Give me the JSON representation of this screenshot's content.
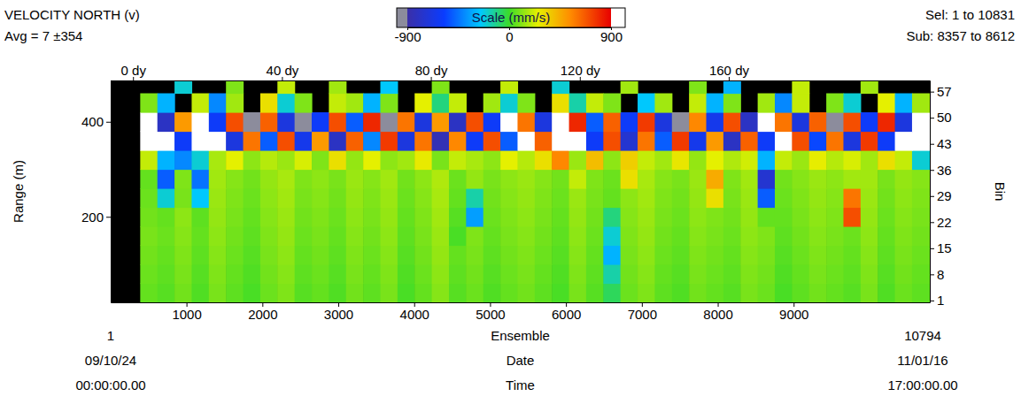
{
  "chart_data": {
    "type": "heatmap",
    "title": "VELOCITY NORTH (v)",
    "subtitle": "Avg = 7 ±354",
    "annotations": [
      "Sel: 1 to 10831",
      "Sub: 8357 to 8612"
    ],
    "footer_rows": [
      {
        "label": "Ensemble",
        "start": 1,
        "end": 10794
      },
      {
        "label": "Date",
        "start": "09/10/24",
        "end": "11/01/16"
      },
      {
        "label": "Time",
        "start": "00:00:00.00",
        "end": "17:00:00.00"
      }
    ],
    "xlim": [
      1,
      10794
    ],
    "xticks": [
      1000,
      2000,
      3000,
      4000,
      5000,
      6000,
      7000,
      8000,
      9000
    ],
    "x2lim": [
      -6,
      214
    ],
    "x2ticks": [
      {
        "value": 0,
        "label": "0 dy"
      },
      {
        "value": 40,
        "label": "40 dy"
      },
      {
        "value": 80,
        "label": "80 dy"
      },
      {
        "value": 120,
        "label": "120 dy"
      },
      {
        "value": 160,
        "label": "160 dy"
      }
    ],
    "y_label": "Range (m)",
    "ylim": [
      20,
      487
    ],
    "yticks": [
      200,
      400
    ],
    "y2_label": "Bin",
    "y2lim": [
      0.5,
      60
    ],
    "y2ticks": [
      1,
      8,
      15,
      22,
      29,
      36,
      43,
      50,
      57
    ],
    "colorbar": {
      "label": "Scale (mm/s)",
      "lim": [
        -900,
        900
      ],
      "ticks": [
        -900,
        0,
        900
      ]
    },
    "x_edges": [
      1,
      390,
      616,
      842,
      1068,
      1294,
      1520,
      1746,
      1972,
      2198,
      2424,
      2650,
      2876,
      3102,
      3328,
      3554,
      3780,
      4006,
      4232,
      4458,
      4684,
      4910,
      5136,
      5362,
      5588,
      5814,
      6040,
      6266,
      6492,
      6718,
      6944,
      7170,
      7396,
      7622,
      7848,
      8074,
      8300,
      8526,
      8752,
      8978,
      9204,
      9430,
      9656,
      9882,
      10108,
      10334,
      10560,
      10794
    ],
    "y_edges": [
      20,
      60,
      100,
      140,
      180,
      220,
      260,
      300,
      340,
      380,
      420,
      460,
      500
    ],
    "values": [
      [
        null,
        60,
        40,
        80,
        30,
        90,
        50,
        20,
        70,
        100,
        40,
        60,
        30,
        80,
        50,
        90,
        20,
        60,
        110,
        40,
        70,
        30,
        60,
        80,
        50,
        20,
        90,
        40,
        -60,
        70,
        100,
        50,
        30,
        80,
        60,
        40,
        90,
        70,
        20,
        50,
        80,
        60,
        40,
        90,
        30,
        70,
        50
      ],
      [
        null,
        70,
        50,
        90,
        40,
        100,
        60,
        30,
        80,
        110,
        50,
        70,
        40,
        90,
        60,
        100,
        30,
        70,
        120,
        50,
        80,
        40,
        70,
        90,
        60,
        30,
        100,
        50,
        -150,
        80,
        110,
        60,
        40,
        90,
        70,
        50,
        100,
        80,
        30,
        60,
        90,
        70,
        50,
        100,
        40,
        80,
        60
      ],
      [
        null,
        80,
        60,
        100,
        50,
        110,
        70,
        40,
        90,
        120,
        60,
        80,
        50,
        100,
        70,
        110,
        40,
        80,
        130,
        60,
        90,
        50,
        80,
        100,
        70,
        40,
        110,
        60,
        -300,
        90,
        120,
        70,
        50,
        100,
        80,
        60,
        110,
        90,
        40,
        70,
        100,
        80,
        60,
        110,
        50,
        90,
        70
      ],
      [
        null,
        90,
        70,
        110,
        60,
        120,
        80,
        50,
        100,
        130,
        70,
        90,
        60,
        110,
        80,
        120,
        50,
        90,
        140,
        20,
        100,
        60,
        90,
        110,
        80,
        50,
        120,
        70,
        -200,
        100,
        130,
        80,
        60,
        110,
        90,
        70,
        120,
        100,
        50,
        80,
        110,
        90,
        70,
        120,
        60,
        100,
        80
      ],
      [
        null,
        80,
        60,
        120,
        50,
        130,
        90,
        60,
        110,
        140,
        80,
        100,
        70,
        120,
        90,
        130,
        60,
        100,
        150,
        40,
        -350,
        70,
        100,
        120,
        90,
        60,
        130,
        80,
        -100,
        110,
        140,
        90,
        70,
        120,
        100,
        80,
        130,
        60,
        60,
        90,
        120,
        100,
        700,
        130,
        70,
        110,
        90
      ],
      [
        null,
        70,
        -200,
        90,
        -250,
        140,
        100,
        70,
        120,
        150,
        90,
        110,
        80,
        130,
        100,
        140,
        70,
        110,
        160,
        60,
        -150,
        80,
        110,
        130,
        100,
        70,
        140,
        90,
        60,
        120,
        150,
        100,
        80,
        130,
        300,
        90,
        140,
        -500,
        70,
        100,
        130,
        110,
        600,
        140,
        80,
        120,
        100
      ],
      [
        null,
        60,
        -500,
        100,
        -450,
        150,
        110,
        80,
        130,
        160,
        100,
        120,
        90,
        140,
        110,
        150,
        80,
        120,
        170,
        70,
        130,
        90,
        120,
        140,
        110,
        80,
        200,
        100,
        70,
        300,
        160,
        110,
        90,
        140,
        450,
        100,
        150,
        -750,
        80,
        110,
        140,
        120,
        150,
        150,
        90,
        130,
        110
      ],
      [
        null,
        200,
        -300,
        -400,
        -200,
        160,
        250,
        120,
        180,
        140,
        230,
        100,
        300,
        130,
        250,
        120,
        150,
        270,
        90,
        200,
        160,
        120,
        250,
        180,
        300,
        550,
        140,
        400,
        120,
        350,
        200,
        150,
        280,
        130,
        250,
        170,
        220,
        -300,
        200,
        140,
        260,
        180,
        230,
        150,
        300,
        200,
        -200
      ],
      [
        null,
        1000,
        1000,
        -600,
        1000,
        1000,
        -700,
        600,
        -500,
        700,
        -650,
        500,
        -800,
        650,
        -400,
        750,
        -700,
        600,
        -850,
        550,
        -600,
        700,
        -500,
        1000,
        650,
        1000,
        1000,
        -600,
        700,
        -750,
        600,
        -500,
        750,
        -650,
        500,
        -800,
        650,
        -600,
        1000,
        700,
        -550,
        600,
        -700,
        750,
        -600,
        1000,
        1000
      ],
      [
        null,
        1000,
        -800,
        500,
        1000,
        -600,
        700,
        -950,
        650,
        -700,
        -1000,
        -600,
        700,
        -500,
        800,
        -1000,
        600,
        -700,
        500,
        -800,
        700,
        -600,
        1000,
        600,
        -700,
        1000,
        800,
        -500,
        650,
        -600,
        750,
        -700,
        -1000,
        550,
        -650,
        700,
        -800,
        1000,
        600,
        -700,
        650,
        -1000,
        700,
        -600,
        800,
        -700,
        1000
      ],
      [
        null,
        100,
        -300,
        null,
        200,
        -400,
        150,
        null,
        300,
        -200,
        100,
        null,
        200,
        150,
        -300,
        100,
        null,
        250,
        -100,
        200,
        null,
        150,
        -200,
        100,
        null,
        300,
        -150,
        200,
        100,
        null,
        -250,
        150,
        null,
        200,
        -300,
        100,
        null,
        150,
        -400,
        200,
        null,
        100,
        -200,
        null,
        250,
        -300,
        150
      ],
      [
        null,
        null,
        null,
        -200,
        null,
        null,
        100,
        null,
        null,
        200,
        null,
        null,
        150,
        null,
        null,
        -250,
        null,
        null,
        100,
        null,
        null,
        null,
        200,
        null,
        null,
        -200,
        null,
        null,
        null,
        150,
        null,
        null,
        null,
        100,
        null,
        -300,
        null,
        null,
        null,
        200,
        null,
        null,
        null,
        150,
        null,
        null,
        null
      ]
    ]
  }
}
